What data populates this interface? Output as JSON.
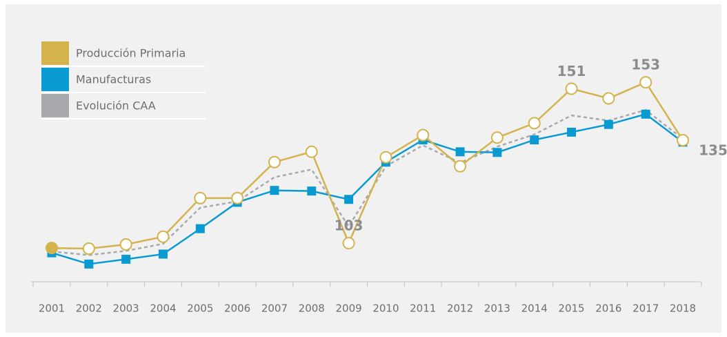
{
  "chart_data": {
    "type": "line",
    "categories": [
      "2001",
      "2002",
      "2003",
      "2004",
      "2005",
      "2006",
      "2007",
      "2008",
      "2009",
      "2010",
      "2011",
      "2012",
      "2013",
      "2014",
      "2015",
      "2016",
      "2017",
      "2018"
    ],
    "series": [
      {
        "name": "Producción Primaria",
        "color": "#d4b24c",
        "marker": "circle",
        "values": [
          101.5,
          101.3,
          102.6,
          105,
          117,
          117,
          128.2,
          131.4,
          103,
          129.7,
          136.6,
          126.9,
          135.8,
          140.3,
          151,
          148,
          153,
          135
        ],
        "value_labels": [
          null,
          null,
          null,
          null,
          null,
          null,
          null,
          null,
          "103",
          null,
          null,
          null,
          null,
          null,
          "151",
          null,
          "153",
          "135"
        ]
      },
      {
        "name": "Manufacturas",
        "color": "#0a9ad2",
        "marker": "square",
        "values": [
          100,
          96.5,
          98,
          99.6,
          107.5,
          115.7,
          119.4,
          119.2,
          116.6,
          128.2,
          135.1,
          131.4,
          131.2,
          135.1,
          137.5,
          139.9,
          143.1,
          134.4
        ]
      },
      {
        "name": "Evolución CAA",
        "color": "#a7a9ac",
        "marker": "none",
        "dashed": true,
        "values": [
          100.4,
          99.3,
          100.6,
          102.8,
          114,
          116,
          123.5,
          125.9,
          108.2,
          126.9,
          133.4,
          128,
          133,
          136.8,
          142.7,
          141.1,
          144.4,
          135.4
        ]
      }
    ],
    "ylim": [
      91,
      170
    ],
    "legend": "top-left"
  }
}
